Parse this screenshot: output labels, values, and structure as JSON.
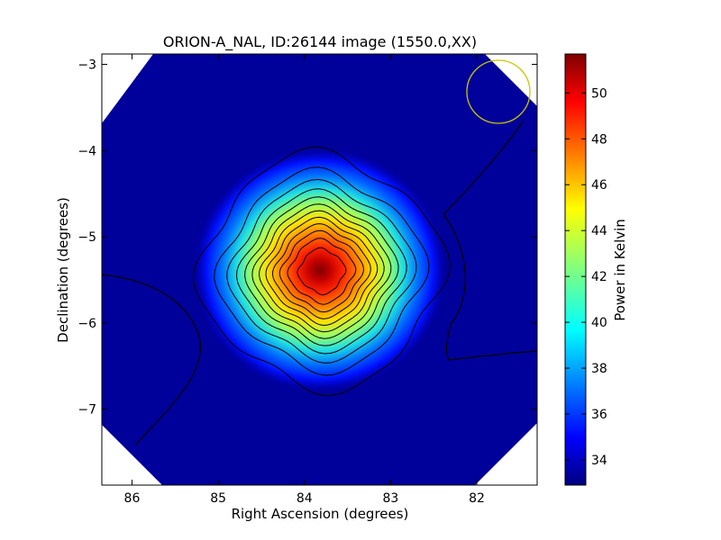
{
  "chart_data": {
    "type": "heatmap",
    "title": "ORION-A_NAL, ID:26144 image (1550.0,XX)",
    "xlabel": "Right Ascension (degrees)",
    "ylabel": "Declination (degrees)",
    "xlim": [
      86.35,
      81.3
    ],
    "ylim": [
      -7.88,
      -2.88
    ],
    "x_ticks": [
      86,
      85,
      84,
      83,
      82
    ],
    "x_tick_labels": [
      "86",
      "85",
      "84",
      "83",
      "82"
    ],
    "y_ticks": [
      -3,
      -4,
      -5,
      -6,
      -7
    ],
    "y_tick_labels": [
      "−3",
      "−4",
      "−5",
      "−6",
      "−7"
    ],
    "colorbar": {
      "label": "Power in Kelvin",
      "range": [
        32.9,
        51.7
      ],
      "ticks": [
        34,
        36,
        38,
        40,
        42,
        44,
        46,
        48,
        50
      ],
      "tick_labels": [
        "34",
        "36",
        "38",
        "40",
        "42",
        "44",
        "46",
        "48",
        "50"
      ],
      "colormap": "jet"
    },
    "source": {
      "ra": 83.8,
      "dec": -5.4,
      "peak": 51.7,
      "background": 33.0
    },
    "contour_levels": [
      34,
      35.5,
      37,
      38.5,
      40,
      41.5,
      43,
      44.5,
      46,
      47.5,
      49,
      50.5
    ],
    "beam_marker": {
      "ra": 81.75,
      "dec": -3.33,
      "radius_deg": 0.36,
      "color": "#c8c800"
    }
  }
}
